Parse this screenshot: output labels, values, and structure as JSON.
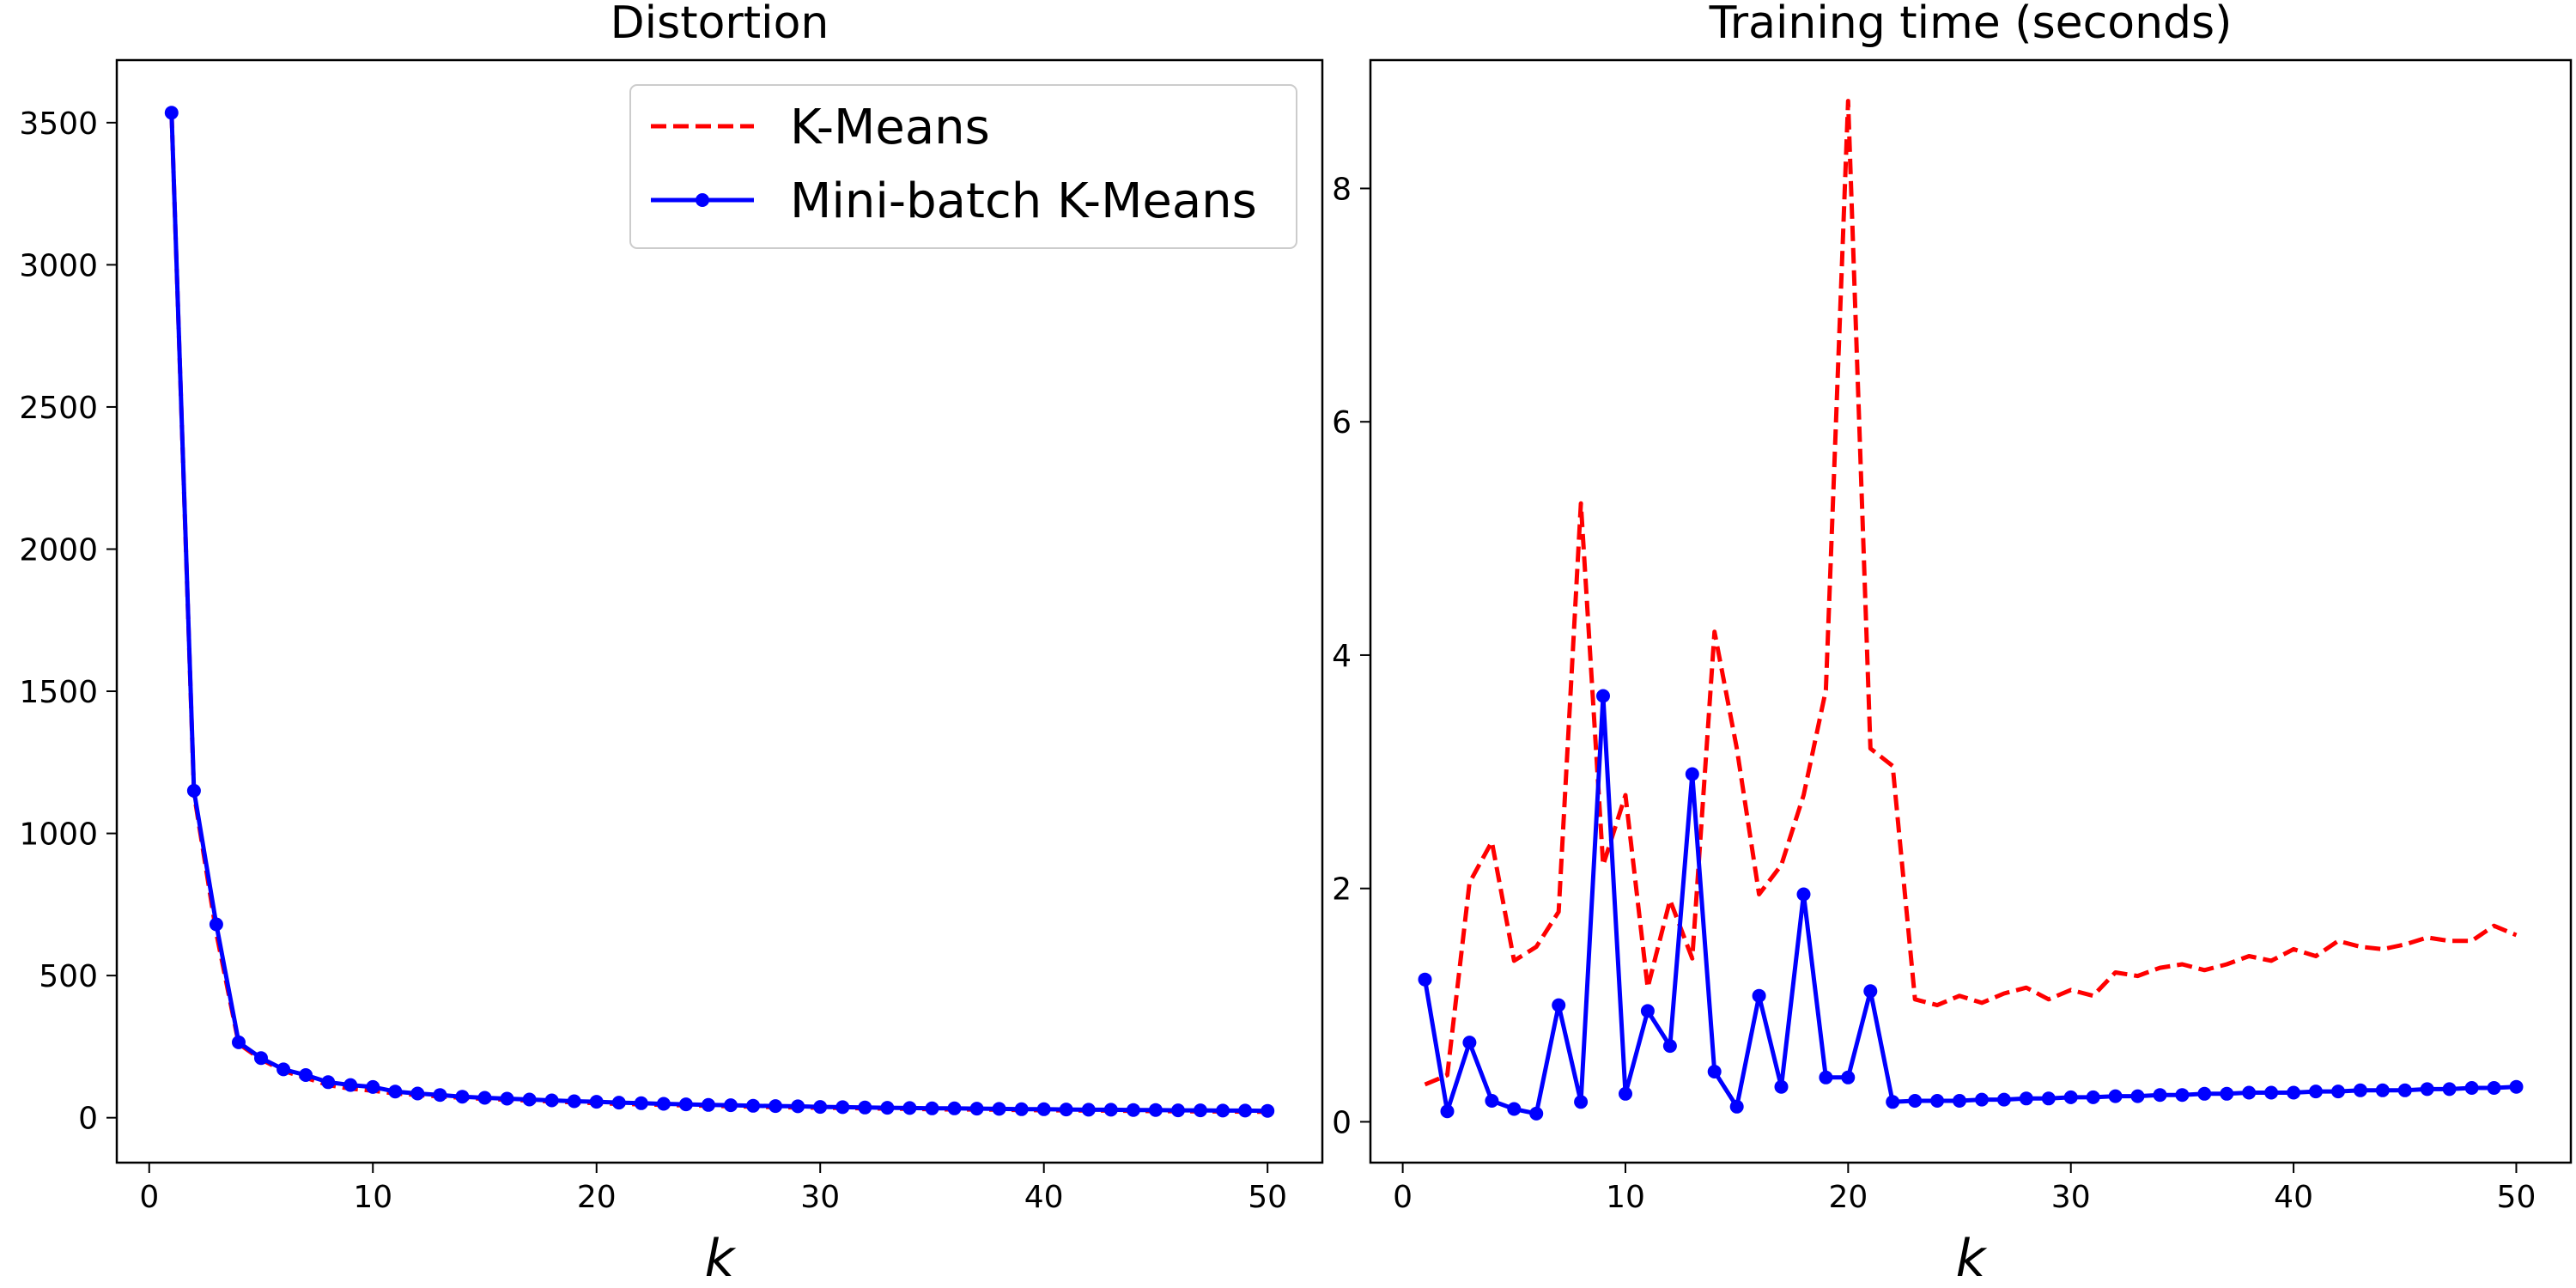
{
  "chart_data": [
    {
      "type": "line",
      "title": "Distortion",
      "xlabel": "k",
      "ylabel": "",
      "xlim": [
        -1.45,
        52.45
      ],
      "ylim": [
        -158,
        3720
      ],
      "xticks": [
        0,
        10,
        20,
        30,
        40,
        50
      ],
      "yticks": [
        0,
        500,
        1000,
        1500,
        2000,
        2500,
        3000,
        3500
      ],
      "grid": false,
      "legend": {
        "position": "top-right",
        "entries": [
          {
            "label": "K-Means",
            "color": "#ff0000",
            "style": "dashed"
          },
          {
            "label": "Mini-batch K-Means",
            "color": "#0000ff",
            "style": "solid-dots"
          }
        ]
      },
      "series": [
        {
          "name": "K-Means",
          "color": "#ff0000",
          "style": "dashed",
          "x": [
            1,
            2,
            3,
            4,
            5,
            6,
            7,
            8,
            9,
            10,
            11,
            12,
            13,
            14,
            15,
            16,
            17,
            18,
            19,
            20,
            21,
            22,
            23,
            24,
            25,
            26,
            27,
            28,
            29,
            30,
            31,
            32,
            33,
            34,
            35,
            36,
            37,
            38,
            39,
            40,
            41,
            42,
            43,
            44,
            45,
            46,
            47,
            48,
            49,
            50
          ],
          "values": [
            3535,
            1140,
            650,
            260,
            205,
            165,
            140,
            115,
            102,
            95,
            85,
            80,
            75,
            70,
            66,
            63,
            60,
            57,
            54,
            51,
            49,
            47,
            45,
            43,
            42,
            40,
            39,
            37,
            36,
            35,
            34,
            33,
            32,
            31,
            30,
            29,
            29,
            28,
            27,
            26,
            26,
            25,
            25,
            24,
            23,
            23,
            22,
            22,
            21,
            21
          ]
        },
        {
          "name": "Mini-batch K-Means",
          "color": "#0000ff",
          "style": "solid-dots",
          "x": [
            1,
            2,
            3,
            4,
            5,
            6,
            7,
            8,
            9,
            10,
            11,
            12,
            13,
            14,
            15,
            16,
            17,
            18,
            19,
            20,
            21,
            22,
            23,
            24,
            25,
            26,
            27,
            28,
            29,
            30,
            31,
            32,
            33,
            34,
            35,
            36,
            37,
            38,
            39,
            40,
            41,
            42,
            43,
            44,
            45,
            46,
            47,
            48,
            49,
            50
          ],
          "values": [
            3535,
            1150,
            680,
            265,
            210,
            170,
            150,
            125,
            115,
            108,
            92,
            85,
            80,
            74,
            70,
            67,
            64,
            61,
            58,
            56,
            53,
            51,
            49,
            47,
            45,
            44,
            42,
            41,
            40,
            38,
            37,
            36,
            35,
            34,
            33,
            33,
            32,
            31,
            30,
            30,
            29,
            28,
            28,
            27,
            27,
            26,
            26,
            25,
            25,
            24
          ]
        }
      ]
    },
    {
      "type": "line",
      "title": "Training time (seconds)",
      "xlabel": "k",
      "ylabel": "",
      "xlim": [
        -1.45,
        52.45
      ],
      "ylim": [
        -0.35,
        9.1
      ],
      "xticks": [
        0,
        10,
        20,
        30,
        40,
        50
      ],
      "yticks": [
        0,
        2,
        4,
        6,
        8
      ],
      "grid": false,
      "series": [
        {
          "name": "K-Means",
          "color": "#ff0000",
          "style": "dashed",
          "x": [
            1,
            2,
            3,
            4,
            5,
            6,
            7,
            8,
            9,
            10,
            11,
            12,
            13,
            14,
            15,
            16,
            17,
            18,
            19,
            20,
            21,
            22,
            23,
            24,
            25,
            26,
            27,
            28,
            29,
            30,
            31,
            32,
            33,
            34,
            35,
            36,
            37,
            38,
            39,
            40,
            41,
            42,
            43,
            44,
            45,
            46,
            47,
            48,
            49,
            50
          ],
          "values": [
            0.32,
            0.4,
            2.05,
            2.4,
            1.38,
            1.5,
            1.8,
            5.3,
            2.2,
            2.8,
            1.15,
            1.9,
            1.4,
            4.2,
            3.2,
            1.95,
            2.2,
            2.8,
            3.7,
            8.75,
            3.2,
            3.05,
            1.05,
            1.0,
            1.08,
            1.02,
            1.1,
            1.15,
            1.05,
            1.13,
            1.08,
            1.28,
            1.25,
            1.32,
            1.35,
            1.3,
            1.35,
            1.42,
            1.38,
            1.48,
            1.42,
            1.55,
            1.5,
            1.48,
            1.52,
            1.58,
            1.55,
            1.55,
            1.68,
            1.6
          ]
        },
        {
          "name": "Mini-batch K-Means",
          "color": "#0000ff",
          "style": "solid-dots",
          "x": [
            1,
            2,
            3,
            4,
            5,
            6,
            7,
            8,
            9,
            10,
            11,
            12,
            13,
            14,
            15,
            16,
            17,
            18,
            19,
            20,
            21,
            22,
            23,
            24,
            25,
            26,
            27,
            28,
            29,
            30,
            31,
            32,
            33,
            34,
            35,
            36,
            37,
            38,
            39,
            40,
            41,
            42,
            43,
            44,
            45,
            46,
            47,
            48,
            49,
            50
          ],
          "values": [
            1.22,
            0.09,
            0.68,
            0.18,
            0.11,
            0.07,
            1.0,
            0.17,
            3.65,
            0.24,
            0.95,
            0.65,
            2.98,
            0.43,
            0.13,
            1.08,
            0.3,
            1.95,
            0.38,
            0.38,
            1.12,
            0.17,
            0.18,
            0.18,
            0.18,
            0.19,
            0.19,
            0.2,
            0.2,
            0.21,
            0.21,
            0.22,
            0.22,
            0.23,
            0.23,
            0.24,
            0.24,
            0.25,
            0.25,
            0.25,
            0.26,
            0.26,
            0.27,
            0.27,
            0.27,
            0.28,
            0.28,
            0.29,
            0.29,
            0.3
          ]
        }
      ]
    }
  ]
}
